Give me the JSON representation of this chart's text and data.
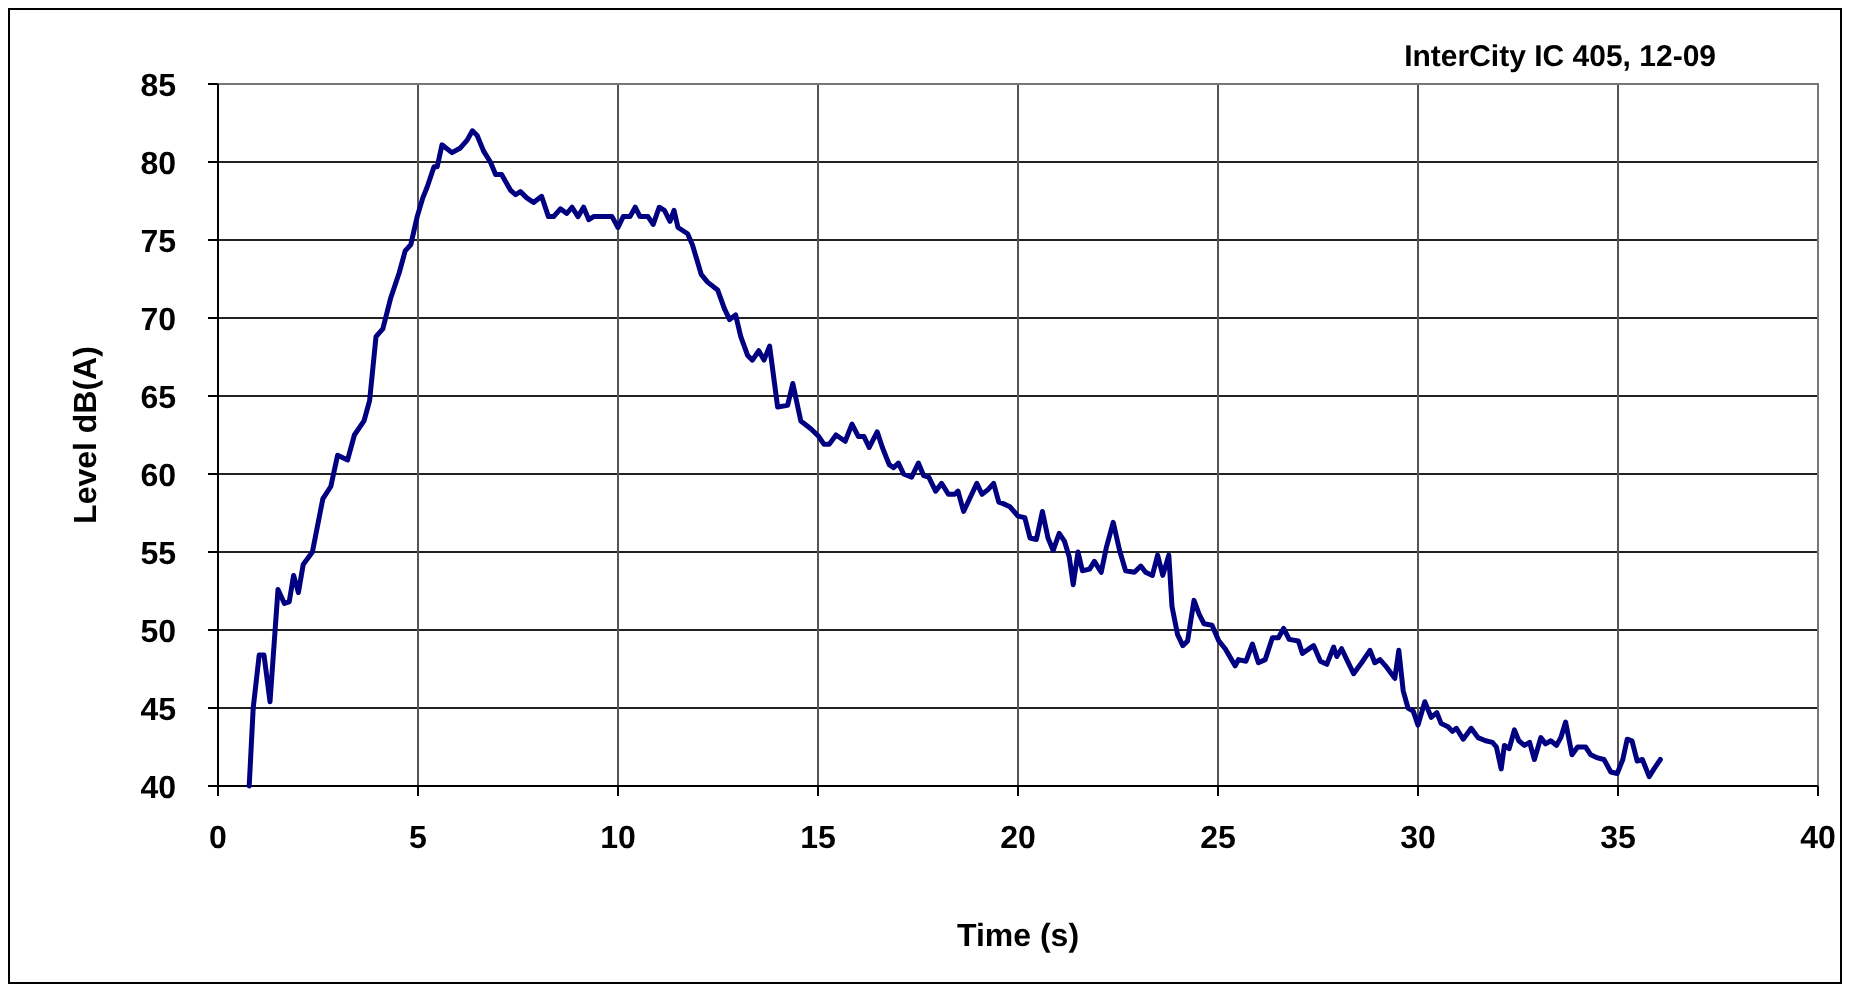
{
  "chart_data": {
    "type": "line",
    "title": "InterCity IC 405, 12-09",
    "xlabel": "Time (s)",
    "ylabel": "Level dB(A)",
    "xlim": [
      0,
      40
    ],
    "xticks": [
      0,
      5,
      10,
      15,
      20,
      25,
      30,
      35,
      40
    ],
    "ylim": [
      40,
      85
    ],
    "yticks": [
      40,
      45,
      50,
      55,
      60,
      65,
      70,
      75,
      80,
      85
    ],
    "grid": true,
    "line_style": "solid",
    "x": [
      0.78,
      0.88,
      1.03,
      1.15,
      1.3,
      1.5,
      1.66,
      1.78,
      1.89,
      2.01,
      2.13,
      2.36,
      2.62,
      2.82,
      2.99,
      3.24,
      3.41,
      3.65,
      3.79,
      3.95,
      4.12,
      4.32,
      4.53,
      4.68,
      4.82,
      4.98,
      5.12,
      5.23,
      5.4,
      5.48,
      5.6,
      5.7,
      5.85,
      6.06,
      6.23,
      6.36,
      6.48,
      6.64,
      6.81,
      6.94,
      7.09,
      7.31,
      7.44,
      7.56,
      7.72,
      7.89,
      8.09,
      8.26,
      8.39,
      8.56,
      8.72,
      8.85,
      9.0,
      9.14,
      9.27,
      9.39,
      9.63,
      9.85,
      10.0,
      10.13,
      10.3,
      10.43,
      10.55,
      10.75,
      10.88,
      11.03,
      11.16,
      11.3,
      11.4,
      11.5,
      11.74,
      11.86,
      12.08,
      12.24,
      12.49,
      12.66,
      12.79,
      12.94,
      13.07,
      13.24,
      13.36,
      13.52,
      13.65,
      13.79,
      13.99,
      14.24,
      14.37,
      14.57,
      14.82,
      15.02,
      15.15,
      15.28,
      15.45,
      15.68,
      15.85,
      16.01,
      16.15,
      16.28,
      16.48,
      16.61,
      16.78,
      16.89,
      17.01,
      17.14,
      17.34,
      17.51,
      17.64,
      17.77,
      17.94,
      18.09,
      18.26,
      18.42,
      18.5,
      18.64,
      18.77,
      18.97,
      19.1,
      19.25,
      19.39,
      19.52,
      19.63,
      19.8,
      20.0,
      20.17,
      20.3,
      20.46,
      20.61,
      20.75,
      20.88,
      21.03,
      21.16,
      21.28,
      21.38,
      21.5,
      21.61,
      21.79,
      21.91,
      22.08,
      22.21,
      22.38,
      22.54,
      22.69,
      22.91,
      23.07,
      23.19,
      23.36,
      23.49,
      23.62,
      23.77,
      23.85,
      23.99,
      24.12,
      24.24,
      24.4,
      24.53,
      24.65,
      24.85,
      25.02,
      25.18,
      25.43,
      25.51,
      25.7,
      25.86,
      26.01,
      26.18,
      26.36,
      26.51,
      26.64,
      26.78,
      27.01,
      27.11,
      27.39,
      27.56,
      27.72,
      27.89,
      27.97,
      28.09,
      28.22,
      28.39,
      28.59,
      28.8,
      28.92,
      29.05,
      29.22,
      29.42,
      29.52,
      29.63,
      29.75,
      29.88,
      30.0,
      30.17,
      30.33,
      30.47,
      30.58,
      30.75,
      30.86,
      30.96,
      31.13,
      31.33,
      31.5,
      31.69,
      31.86,
      31.96,
      32.08,
      32.16,
      32.28,
      32.41,
      32.52,
      32.66,
      32.79,
      32.91,
      33.07,
      33.19,
      33.32,
      33.46,
      33.57,
      33.69,
      33.85,
      33.99,
      34.19,
      34.32,
      34.49,
      34.65,
      34.82,
      34.98,
      35.12,
      35.23,
      35.35,
      35.48,
      35.61,
      35.78,
      35.9,
      36.06
    ],
    "series": [
      {
        "color": "#000080",
        "values": [
          40.0,
          45.0,
          48.4,
          48.4,
          45.4,
          52.6,
          51.7,
          51.8,
          53.5,
          52.4,
          54.2,
          55.0,
          58.4,
          59.2,
          61.2,
          60.9,
          62.5,
          63.4,
          64.7,
          68.8,
          69.3,
          71.3,
          72.9,
          74.3,
          74.7,
          76.5,
          77.7,
          78.4,
          79.7,
          79.7,
          81.1,
          80.9,
          80.6,
          80.9,
          81.4,
          82.0,
          81.7,
          80.7,
          80.0,
          79.2,
          79.2,
          78.2,
          77.9,
          78.1,
          77.7,
          77.4,
          77.8,
          76.5,
          76.5,
          77.0,
          76.7,
          77.1,
          76.5,
          77.1,
          76.3,
          76.5,
          76.5,
          76.5,
          75.8,
          76.5,
          76.5,
          77.1,
          76.5,
          76.5,
          76.0,
          77.1,
          76.9,
          76.2,
          76.9,
          75.8,
          75.4,
          74.7,
          72.8,
          72.3,
          71.8,
          70.6,
          69.9,
          70.2,
          68.8,
          67.6,
          67.3,
          67.9,
          67.3,
          68.2,
          64.3,
          64.4,
          65.8,
          63.4,
          62.9,
          62.4,
          61.9,
          61.9,
          62.5,
          62.1,
          63.2,
          62.4,
          62.4,
          61.7,
          62.7,
          61.7,
          60.6,
          60.4,
          60.7,
          60.0,
          59.8,
          60.7,
          59.9,
          59.8,
          58.9,
          59.4,
          58.7,
          58.7,
          58.9,
          57.6,
          58.3,
          59.4,
          58.7,
          59.0,
          59.4,
          58.2,
          58.1,
          57.9,
          57.3,
          57.2,
          55.9,
          55.8,
          57.6,
          55.9,
          55.1,
          56.2,
          55.7,
          54.7,
          52.9,
          55.0,
          53.8,
          53.9,
          54.4,
          53.7,
          55.3,
          56.9,
          55.1,
          53.8,
          53.7,
          54.1,
          53.7,
          53.5,
          54.8,
          53.5,
          54.8,
          51.5,
          49.7,
          49.0,
          49.3,
          51.9,
          51.0,
          50.4,
          50.3,
          49.3,
          48.8,
          47.7,
          48.1,
          48.0,
          49.1,
          47.9,
          48.1,
          49.5,
          49.5,
          50.1,
          49.4,
          49.3,
          48.5,
          49.0,
          48.0,
          47.8,
          48.9,
          48.3,
          48.8,
          48.1,
          47.2,
          47.9,
          48.7,
          47.9,
          48.1,
          47.6,
          46.9,
          48.7,
          46.1,
          45.0,
          44.8,
          43.9,
          45.4,
          44.4,
          44.7,
          44.0,
          43.8,
          43.5,
          43.7,
          43.0,
          43.7,
          43.1,
          42.9,
          42.8,
          42.5,
          41.1,
          42.6,
          42.4,
          43.6,
          42.9,
          42.6,
          42.8,
          41.7,
          43.1,
          42.7,
          42.9,
          42.6,
          43.1,
          44.1,
          42.0,
          42.5,
          42.5,
          42.0,
          41.8,
          41.7,
          40.9,
          40.8,
          41.7,
          43.0,
          42.9,
          41.6,
          41.7,
          40.6,
          41.1,
          41.7
        ]
      }
    ]
  }
}
